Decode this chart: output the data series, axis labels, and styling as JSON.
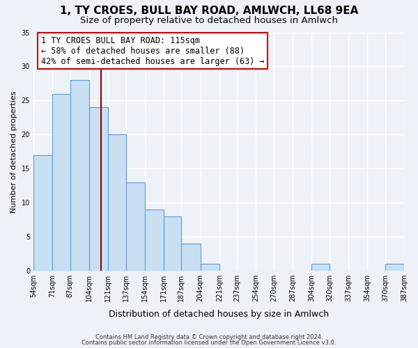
{
  "title": "1, TY CROES, BULL BAY ROAD, AMLWCH, LL68 9EA",
  "subtitle": "Size of property relative to detached houses in Amlwch",
  "xlabel": "Distribution of detached houses by size in Amlwch",
  "ylabel": "Number of detached properties",
  "bar_lefts": [
    54,
    71,
    87,
    104,
    121,
    137,
    154,
    171,
    187,
    204,
    221,
    237,
    254,
    270,
    287,
    304,
    320,
    337,
    354,
    370
  ],
  "bar_rights": [
    71,
    87,
    104,
    121,
    137,
    154,
    171,
    187,
    204,
    221,
    237,
    254,
    270,
    287,
    304,
    320,
    337,
    354,
    370,
    387
  ],
  "bar_values": [
    17,
    26,
    28,
    24,
    20,
    13,
    9,
    8,
    4,
    1,
    0,
    0,
    0,
    0,
    0,
    1,
    0,
    0,
    0,
    1
  ],
  "bar_color": "#c9dff2",
  "bar_edge_color": "#5b9bd5",
  "reference_line_x": 115,
  "xlim_left": 54,
  "xlim_right": 387,
  "ylim": [
    0,
    35
  ],
  "yticks": [
    0,
    5,
    10,
    15,
    20,
    25,
    30,
    35
  ],
  "xtick_positions": [
    54,
    71,
    87,
    104,
    121,
    137,
    154,
    171,
    187,
    204,
    221,
    237,
    254,
    270,
    287,
    304,
    320,
    337,
    354,
    370,
    387
  ],
  "xtick_labels": [
    "54sqm",
    "71sqm",
    "87sqm",
    "104sqm",
    "121sqm",
    "137sqm",
    "154sqm",
    "171sqm",
    "187sqm",
    "204sqm",
    "221sqm",
    "237sqm",
    "254sqm",
    "270sqm",
    "287sqm",
    "304sqm",
    "320sqm",
    "337sqm",
    "354sqm",
    "370sqm",
    "387sqm"
  ],
  "annotation_title": "1 TY CROES BULL BAY ROAD: 115sqm",
  "annotation_line1": "← 58% of detached houses are smaller (88)",
  "annotation_line2": "42% of semi-detached houses are larger (63) →",
  "footnote1": "Contains HM Land Registry data © Crown copyright and database right 2024.",
  "footnote2": "Contains public sector information licensed under the Open Government Licence v3.0.",
  "bg_color": "#edf2f9",
  "plot_bg_color": "#edf2f9",
  "grid_color": "#ffffff",
  "title_fontsize": 11,
  "subtitle_fontsize": 9.5,
  "ylabel_fontsize": 8,
  "xlabel_fontsize": 9,
  "tick_fontsize": 7,
  "annot_fontsize": 8.5
}
